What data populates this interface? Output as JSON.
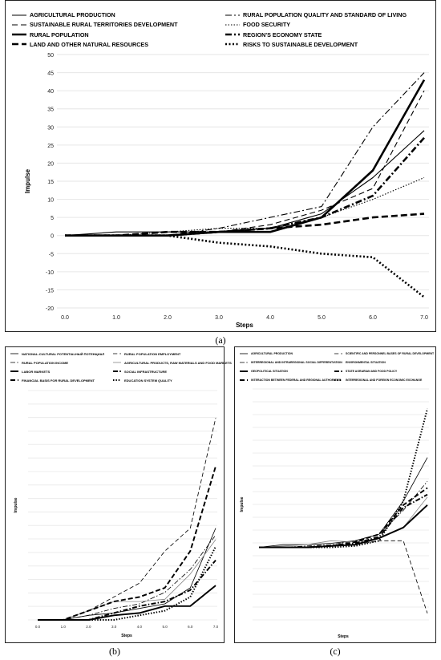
{
  "captions": {
    "a": "(a)",
    "b": "(b)",
    "c": "(c)"
  },
  "chart_data": [
    {
      "id": "a",
      "type": "line",
      "xlabel": "Steps",
      "ylabel": "Impulse",
      "x": [
        0.0,
        1.0,
        2.0,
        3.0,
        4.0,
        5.0,
        6.0,
        7.0
      ],
      "xtick_labels": [
        "0.0",
        "1.0",
        "2.0",
        "3.0",
        "4.0",
        "5.0",
        "6.0",
        "7.0"
      ],
      "ylim": [
        -20,
        50
      ],
      "yticks": [
        -20,
        -15,
        -10,
        -5,
        0,
        5,
        10,
        15,
        20,
        25,
        30,
        35,
        40,
        45,
        50
      ],
      "grid": true,
      "legend_position": "top",
      "series": [
        {
          "name": "AGRICULTURAL PRODUCTION",
          "style": "solid-thin",
          "values": [
            0,
            1,
            1,
            1,
            2,
            6,
            16,
            29
          ]
        },
        {
          "name": "RURAL POPULATION QUALITY AND STANDARD OF LIVING",
          "style": "dashdot-thin",
          "values": [
            0,
            0,
            0,
            2,
            5,
            8,
            30,
            45
          ]
        },
        {
          "name": "SUSTAINABLE RURAL TERRITORIES DEVELOPMENT",
          "style": "dash-thin",
          "values": [
            0,
            0,
            0,
            1,
            3,
            7,
            13,
            40
          ]
        },
        {
          "name": "FOOD SECURITY",
          "style": "dotted-thin",
          "values": [
            0,
            0,
            1,
            2,
            2,
            5,
            10,
            16
          ]
        },
        {
          "name": "RURAL POPULATION",
          "style": "solid-thick",
          "values": [
            0,
            0,
            0,
            1,
            1,
            5,
            18,
            43
          ]
        },
        {
          "name": "REGION'S ECONOMY STATE",
          "style": "dashdot-thick",
          "values": [
            0,
            0,
            0,
            1,
            2,
            5,
            11,
            27
          ]
        },
        {
          "name": "LAND AND OTHER NATURAL RESOURCES",
          "style": "dash-thick",
          "values": [
            0,
            0,
            1,
            1,
            2,
            3,
            5,
            6
          ]
        },
        {
          "name": "RISKS TO SUSTAINABLE DEVELOPMENT",
          "style": "dotted-thick",
          "values": [
            0,
            0,
            0,
            -2,
            -3,
            -5,
            -6,
            -17
          ]
        }
      ]
    },
    {
      "id": "b",
      "type": "line",
      "xlabel": "Steps",
      "ylabel": "Impulse",
      "x": [
        0.0,
        1.0,
        2.0,
        3.0,
        4.0,
        5.0,
        6.0,
        7.0
      ],
      "xtick_labels": [
        "0.0",
        "1.0",
        "2.0",
        "3.0",
        "4.0",
        "5.0",
        "6.0",
        "7.0"
      ],
      "ylim": [
        0,
        1
      ],
      "grid": true,
      "legend_position": "top",
      "series": [
        {
          "name": "NATIONAL-CULTURAL POTENTIALНЫЙ ПОТЕНЦИАЛ",
          "style": "solid-thin",
          "values": [
            0,
            0,
            0.02,
            0.03,
            0.05,
            0.07,
            0.14,
            0.4
          ]
        },
        {
          "name": "RURAL POPULATION EMPLOYMENT",
          "style": "dash-thin",
          "values": [
            0,
            0,
            0.04,
            0.1,
            0.16,
            0.3,
            0.4,
            0.88
          ]
        },
        {
          "name": "RURAL POPULATION INCOME",
          "style": "dashdot-thin",
          "values": [
            0,
            0,
            0.02,
            0.05,
            0.07,
            0.12,
            0.22,
            0.37
          ]
        },
        {
          "name": "AGRICULTURAL PRODUCTS, RAW MATERIALS AND FOOD MARKETS",
          "style": "solid-gray",
          "values": [
            0,
            0,
            0.04,
            0.08,
            0.08,
            0.09,
            0.2,
            0.35
          ]
        },
        {
          "name": "LABOR MARKETS",
          "style": "solid-thick",
          "values": [
            0,
            0,
            0,
            0.02,
            0.03,
            0.06,
            0.06,
            0.15
          ]
        },
        {
          "name": "SOCIAL INFRASTRUCTURE",
          "style": "dashdot-thick",
          "values": [
            0,
            0,
            0,
            0.03,
            0.06,
            0.08,
            0.13,
            0.26
          ]
        },
        {
          "name": "FINANCIAL BASIS FOR RURAL DEVELOPMENT",
          "style": "dash-thick",
          "values": [
            0,
            0,
            0.04,
            0.08,
            0.1,
            0.14,
            0.3,
            0.67
          ]
        },
        {
          "name": "EDUCATION SYSTEM QUALITY",
          "style": "dotted-thick",
          "values": [
            0,
            0,
            0,
            0,
            0.02,
            0.04,
            0.1,
            0.32
          ]
        }
      ]
    },
    {
      "id": "c",
      "type": "line",
      "xlabel": "Steps",
      "ylabel": "Impulse",
      "x": [
        0.0,
        1.0,
        2.0,
        3.0,
        4.0,
        5.0,
        6.0,
        7.0
      ],
      "ylim": [
        -0.55,
        1.2
      ],
      "grid": true,
      "legend_position": "top",
      "series": [
        {
          "name": "AGRICULTURAL PRODUCTION",
          "style": "solid-thin",
          "values": [
            0,
            0.02,
            0.02,
            0.03,
            0.05,
            0.1,
            0.35,
            0.68
          ]
        },
        {
          "name": "SCIENTIFIC AND PERSONNEL BASES OF RURAL DEVELOPMENT",
          "style": "dash-thin",
          "values": [
            0,
            0,
            0,
            0.01,
            0.02,
            0.05,
            0.05,
            -0.5
          ]
        },
        {
          "name": "INTERREGIONAL AND INTRAREGIONAL SOCIAL DIFFERENTIATION",
          "style": "dashdot-thin",
          "values": [
            0,
            0,
            0.01,
            0.02,
            0.05,
            0.1,
            0.28,
            0.5
          ]
        },
        {
          "name": "ENVIRONMENTAL SITUATION",
          "style": "solid-gray",
          "values": [
            0,
            0.01,
            0.02,
            0.05,
            0.04,
            0.07,
            0.15,
            0.38
          ]
        },
        {
          "name": "GEOPOLITICAL SITUATION",
          "style": "solid-thick",
          "values": [
            0,
            0,
            0,
            0.01,
            0.02,
            0.07,
            0.15,
            0.32
          ]
        },
        {
          "name": "STATE AGRARIAN AND FOOD POLICY",
          "style": "dashdot-thick",
          "values": [
            0,
            0,
            0,
            0.01,
            0.03,
            0.08,
            0.3,
            0.4
          ]
        },
        {
          "name": "INTERACTION BETWEEN FEDERAL AND REGIONAL AUTHORITIES",
          "style": "dash-thick",
          "values": [
            0,
            0,
            0,
            0.01,
            0.04,
            0.1,
            0.32,
            0.45
          ]
        },
        {
          "name": "INTERREGIONAL AND FOREIGN ECONOMIC EXCHANGE",
          "style": "dotted-thick",
          "values": [
            0,
            0,
            0,
            0,
            0.01,
            0.05,
            0.35,
            1.05
          ]
        }
      ]
    }
  ]
}
